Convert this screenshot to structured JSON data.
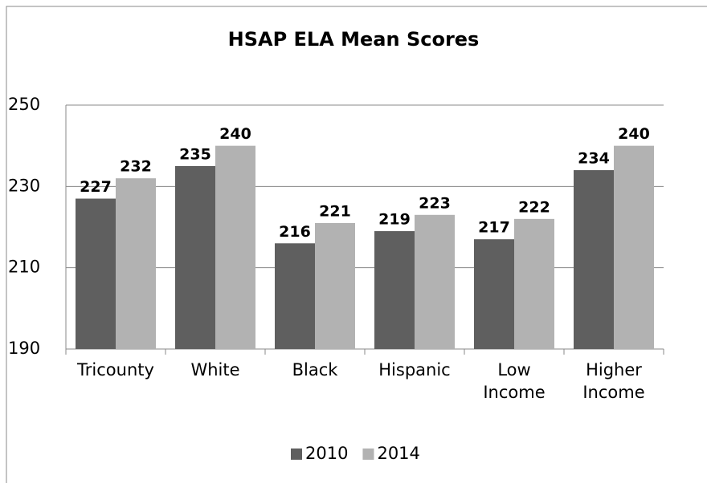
{
  "chart_data": {
    "type": "bar",
    "title": "HSAP ELA Mean Scores",
    "categories": [
      "Tricounty",
      "White",
      "Black",
      "Hispanic",
      "Low Income",
      "Higher Income"
    ],
    "series": [
      {
        "name": "2010",
        "color": "#5f5f5f",
        "values": [
          227,
          235,
          216,
          219,
          217,
          234
        ]
      },
      {
        "name": "2014",
        "color": "#b2b2b2",
        "values": [
          232,
          240,
          221,
          223,
          222,
          240
        ]
      }
    ],
    "ylim": [
      190,
      250
    ],
    "yticks": [
      190,
      210,
      230,
      250
    ],
    "grid": true,
    "legend": "bottom"
  }
}
